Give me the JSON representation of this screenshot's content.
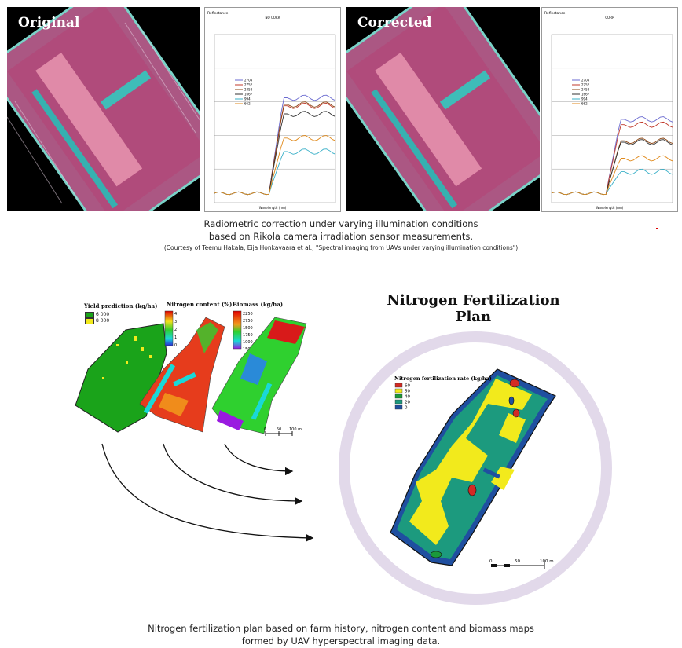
{
  "top": {
    "original_label": "Original",
    "corrected_label": "Corrected",
    "chart_left": {
      "corner_label": "Reflectance",
      "title": "NO CORR",
      "xlabel": "Wavelength (nm)",
      "legend": [
        "2704",
        "2752",
        "2458",
        "1667",
        "994",
        "662"
      ]
    },
    "chart_right": {
      "corner_label": "Reflectance",
      "title": "CORR",
      "xlabel": "Wavelength (nm)",
      "legend": [
        "2704",
        "2752",
        "2458",
        "1667",
        "994",
        "662"
      ]
    },
    "caption_line1": "Radiometric correction under varying illumination conditions",
    "caption_line2": "based on Rikola camera irradiation sensor measurements.",
    "courtesy": "(Courtesy of Teemu Hakala, Eija Honkavaara et al., \"Spectral imaging from UAVs under varying illumination conditions\")"
  },
  "maps": {
    "yield": {
      "title": "Yield prediction (kg/ha)",
      "legend": [
        {
          "label": "6 000",
          "color": "#1aa31a"
        },
        {
          "label": "8 000",
          "color": "#f2ea1c"
        }
      ]
    },
    "nitrogen": {
      "title": "Nitrogen content (%)",
      "ticks": [
        "4",
        "3",
        "2",
        "1",
        "0"
      ]
    },
    "biomass": {
      "title": "Biomass (kg/ha)",
      "ticks": [
        "2250",
        "2750",
        "1500",
        "1750",
        "1000",
        "1500"
      ]
    },
    "scale": {
      "labels": [
        "0",
        "50",
        "100 m"
      ]
    }
  },
  "plan": {
    "title": "Nitrogen Fertilization Plan",
    "legend_title": "Nitrogen fertilization rate (kg/ha)",
    "legend": [
      {
        "label": "60",
        "color": "#d42a24"
      },
      {
        "label": "50",
        "color": "#f2ea1c"
      },
      {
        "label": "40",
        "color": "#1a9a3a"
      },
      {
        "label": "20",
        "color": "#1c9a7e"
      },
      {
        "label": "0",
        "color": "#1f4fa0"
      }
    ],
    "scale": {
      "labels": [
        "0",
        "50",
        "100 m"
      ]
    }
  },
  "bottom_caption_line1": "Nitrogen fertilization plan based on farm history, nitrogen content and biomass maps",
  "bottom_caption_line2": "formed by UAV hyperspectral imaging data."
}
